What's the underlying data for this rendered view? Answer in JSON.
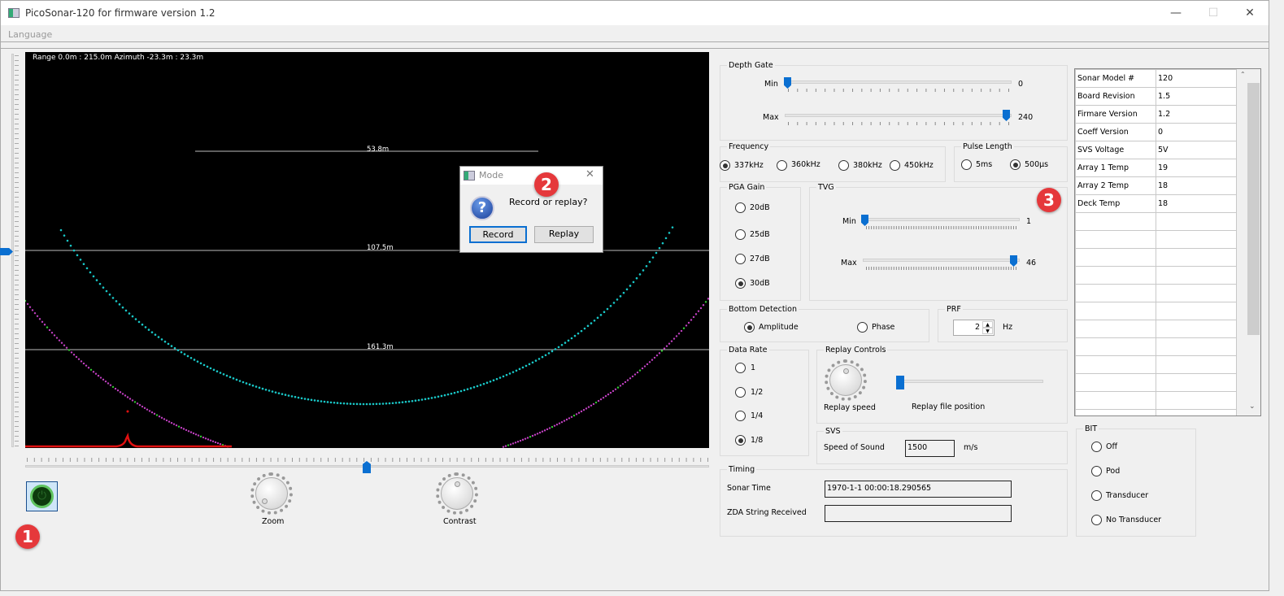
{
  "window": {
    "title": "PicoSonar-120 for firmware version 1.2",
    "minimize": "—",
    "maximize": "☐",
    "close": "✕"
  },
  "menu": {
    "items": [
      {
        "label": "Language"
      }
    ]
  },
  "sonar": {
    "info": "Range 0.0m : 215.0m Azimuth -23.3m : 23.3m",
    "range_marks": [
      "53.8m",
      "107.5m",
      "161.3m"
    ],
    "colors": {
      "bottom_primary": "#19c7c7",
      "bottom_secondary": "#c040c0",
      "profile": "#e01010",
      "background": "#000000"
    }
  },
  "controls": {
    "zoom_label": "Zoom",
    "contrast_label": "Contrast",
    "power_icon": "power-icon"
  },
  "dialog": {
    "title": "Mode",
    "message": "Record or replay?",
    "record": "Record",
    "replay": "Replay",
    "icon": "question-icon"
  },
  "depth_gate": {
    "title": "Depth Gate",
    "min_label": "Min",
    "min_value": "0",
    "max_label": "Max",
    "max_value": "240"
  },
  "frequency": {
    "title": "Frequency",
    "options": [
      "337kHz",
      "360kHz",
      "380kHz",
      "450kHz"
    ],
    "selected": "337kHz"
  },
  "pulse_length": {
    "title": "Pulse Length",
    "options": [
      "5ms",
      "500µs"
    ],
    "selected": "500µs"
  },
  "pga_gain": {
    "title": "PGA Gain",
    "options": [
      "20dB",
      "25dB",
      "27dB",
      "30dB"
    ],
    "selected": "30dB"
  },
  "tvg": {
    "title": "TVG",
    "min_label": "Min",
    "min_value": "1",
    "max_label": "Max",
    "max_value": "46"
  },
  "bottom_detection": {
    "title": "Bottom Detection",
    "options": [
      "Amplitude",
      "Phase"
    ],
    "selected": "Amplitude"
  },
  "prf": {
    "title": "PRF",
    "value": "2",
    "unit": "Hz"
  },
  "data_rate": {
    "title": "Data Rate",
    "options": [
      "1",
      "1/2",
      "1/4",
      "1/8"
    ],
    "selected": "1/8"
  },
  "replay": {
    "title": "Replay Controls",
    "speed_label": "Replay speed",
    "position_label": "Replay file position"
  },
  "svs": {
    "title": "SVS",
    "label": "Speed of Sound",
    "value": "1500",
    "unit": "m/s"
  },
  "timing": {
    "title": "Timing",
    "sonar_time_label": "Sonar Time",
    "sonar_time": "1970-1-1 00:00:18.290565",
    "zda_label": "ZDA String Received",
    "zda": ""
  },
  "bit": {
    "title": "BIT",
    "options": [
      "Off",
      "Pod",
      "Transducer",
      "No Transducer"
    ]
  },
  "info_table": {
    "rows": [
      [
        "Sonar Model #",
        "120"
      ],
      [
        "Board Revision",
        "1.5"
      ],
      [
        "Firmare Version",
        "1.2"
      ],
      [
        "Coeff Version",
        "0"
      ],
      [
        "SVS Voltage",
        "5V"
      ],
      [
        "Array 1 Temp",
        "19"
      ],
      [
        "Array 2 Temp",
        "18"
      ],
      [
        "Deck Temp",
        "18"
      ]
    ],
    "empty_rows": 12
  },
  "badges": [
    "1",
    "2",
    "3"
  ]
}
